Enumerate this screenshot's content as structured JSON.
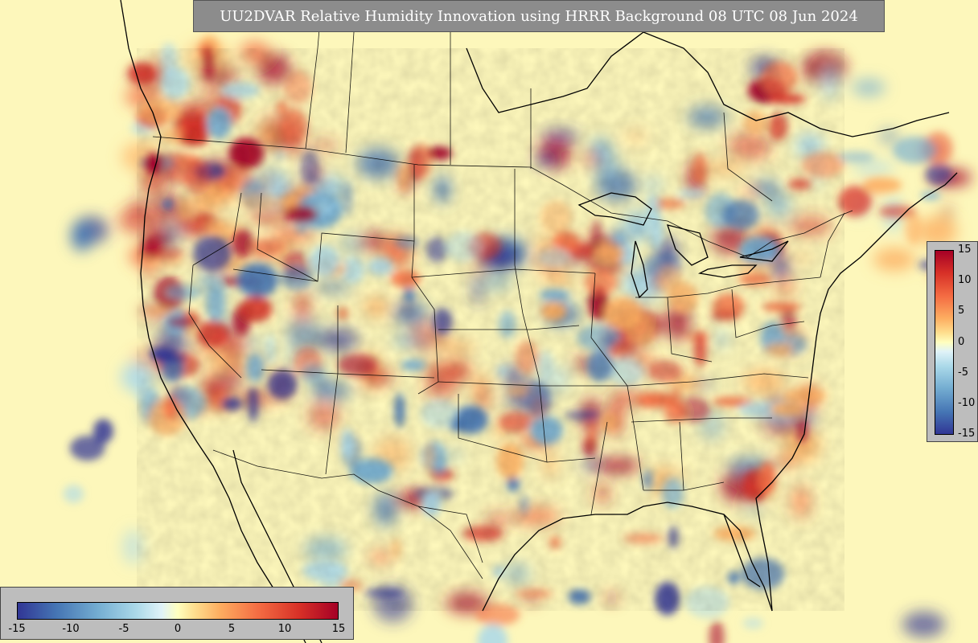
{
  "title": "UU2DVAR Relative Humidity Innovation using HRRR Background 08 UTC 08 Jun 2024",
  "colorbar_right": {
    "ticks": [
      "15",
      "10",
      "5",
      "0",
      "-5",
      "-10",
      "-15"
    ]
  },
  "colorbar_bottom": {
    "ticks": [
      "-15",
      "-10",
      "-5",
      "0",
      "5",
      "10",
      "15"
    ]
  },
  "colors": {
    "max": "#a50026",
    "high": "#d73027",
    "mid_high": "#f46d43",
    "low_high": "#fdae61",
    "neutral": "#ffffbf",
    "low_low": "#abd9e9",
    "mid_low": "#74add1",
    "low": "#4575b4",
    "min": "#313695"
  },
  "value_range": [
    -15,
    15
  ]
}
